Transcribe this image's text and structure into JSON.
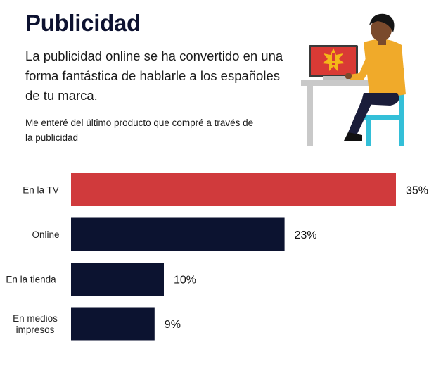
{
  "header": {
    "title": "Publicidad",
    "intro": "La publicidad online se ha convertido en una forma fantástica de hablarle a los españoles de tu marca.",
    "subtitle": "Me enteré del último producto que compré a través de la publicidad"
  },
  "illustration": {
    "icon": "person-at-laptop-with-ad-alert-icon"
  },
  "colors": {
    "highlight": "#d03a3c",
    "bar": "#0c1330",
    "navy_text": "#0d1230"
  },
  "chart_data": {
    "type": "bar",
    "orientation": "horizontal",
    "categories": [
      [
        "En la TV"
      ],
      [
        "Online"
      ],
      [
        "En la tienda"
      ],
      [
        "En medios",
        "impresos"
      ]
    ],
    "values": [
      35,
      23,
      10,
      9
    ],
    "value_labels": [
      "35%",
      "23%",
      "10%",
      "9%"
    ],
    "highlight_index": 0,
    "xlim": [
      0,
      35
    ],
    "grid": false
  }
}
